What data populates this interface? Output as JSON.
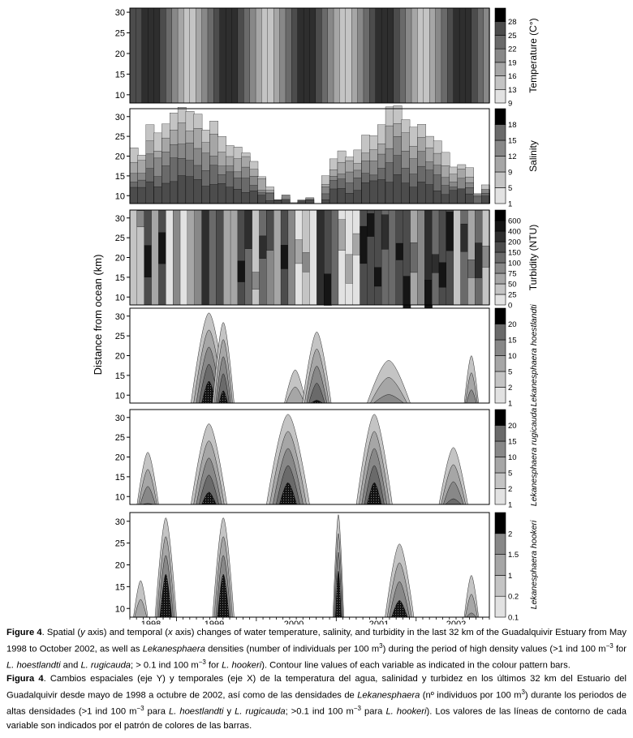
{
  "figure": {
    "y_axis_label": "Distance from ocean (km)",
    "x_ticks": [
      "1998",
      "1999",
      "2000",
      "2001",
      "2002"
    ]
  },
  "chart_data": [
    {
      "type": "heatmap",
      "variable": "Temperature",
      "colorbar_label": "Temperature (C°)",
      "levels": [
        "9",
        "13",
        "16",
        "19",
        "22",
        "25",
        "28"
      ],
      "ylim": [
        8,
        31
      ],
      "y_ticks": [
        10,
        15,
        20,
        25,
        30
      ],
      "columns": [
        5,
        5,
        6,
        6,
        6,
        5,
        4,
        3,
        2,
        1,
        1,
        2,
        3,
        4,
        5,
        6,
        6,
        6,
        5,
        4,
        3,
        2,
        1,
        1,
        2,
        3,
        4,
        5,
        6,
        6,
        6,
        5,
        4,
        3,
        2,
        1,
        1,
        2,
        3,
        4,
        5,
        6,
        6,
        6,
        5,
        4,
        3,
        2,
        1,
        1,
        2,
        3,
        4,
        5,
        6,
        6,
        6,
        5,
        4,
        3
      ]
    },
    {
      "type": "heatmap",
      "variable": "Salinity",
      "colorbar_label": "Salinity",
      "levels": [
        "1",
        "5",
        "9",
        "12",
        "15",
        "18"
      ],
      "ylim": [
        8,
        32
      ],
      "y_ticks": [
        10,
        15,
        20,
        25,
        30
      ]
    },
    {
      "type": "heatmap",
      "variable": "Turbidity",
      "colorbar_label": "Turbidity (NTU)",
      "levels": [
        "0",
        "25",
        "50",
        "75",
        "100",
        "150",
        "200",
        "400",
        "600"
      ],
      "ylim": [
        8,
        32
      ],
      "y_ticks": [
        10,
        15,
        20,
        25,
        30
      ]
    },
    {
      "type": "heatmap",
      "variable": "Lekanesphaera hoestlandti",
      "colorbar_label": "Lekanesphaera hoestlandti",
      "levels": [
        "1",
        "2",
        "5",
        "10",
        "15",
        "20"
      ],
      "ylim": [
        8,
        32
      ],
      "y_ticks": [
        10,
        15,
        20,
        25,
        30
      ]
    },
    {
      "type": "heatmap",
      "variable": "Lekanesphaera rugicauda",
      "colorbar_label": "Lekanesphaera rugicauda",
      "levels": [
        "1",
        "2",
        "5",
        "10",
        "15",
        "20"
      ],
      "ylim": [
        8,
        32
      ],
      "y_ticks": [
        10,
        15,
        20,
        25,
        30
      ]
    },
    {
      "type": "heatmap",
      "variable": "Lekanesphaera hookeri",
      "colorbar_label": "Lekanesphaera hookeri",
      "levels": [
        "0.1",
        "0.2",
        "1",
        "1.5",
        "2"
      ],
      "ylim": [
        8,
        32
      ],
      "y_ticks": [
        10,
        15,
        20,
        25,
        30
      ]
    }
  ],
  "caption_en": {
    "label": "Figure 4",
    "parts": [
      ". Spatial (",
      "y",
      " axis) and temporal (",
      "x",
      " axis) changes of water temperature, salinity, and turbidity in the last 32 km of the Guadalquivir Estuary from May 1998 to October 2002, as well as ",
      "Lekanesphaera",
      " densities (number of individuals per 100 m",
      "3",
      ") during the period of high density values (>1 ind 100 m",
      "−3",
      " for ",
      "L. hoestlandti",
      " and ",
      "L. rugicauda",
      "; > 0.1 ind 100 m",
      "−3",
      " for ",
      "L. hookeri",
      "). Contour line values of each variable as indicated in the colour pattern bars."
    ]
  },
  "caption_es": {
    "label": "Figura 4",
    "parts": [
      ". Cambios espaciales (eje Y) y temporales (eje X) de la temperatura del agua, salinidad y turbidez en los últimos 32 km del Estuario del Guadalquivir desde mayo de 1998 a octubre de 2002, así como de las densidades de ",
      "Lekanesphaera",
      " (nº individuos por 100 m",
      "3",
      ") durante los periodos de altas densidades (>1 ind 100 m",
      "−3",
      " para ",
      "L. hoestlandti",
      " y ",
      "L. rugicauda",
      "; >0.1 ind 100 m",
      "−3",
      " para ",
      "L. hookeri",
      "). Los valores de las líneas de contorno de cada variable son indicados por el patrón de colores de las barras."
    ]
  }
}
